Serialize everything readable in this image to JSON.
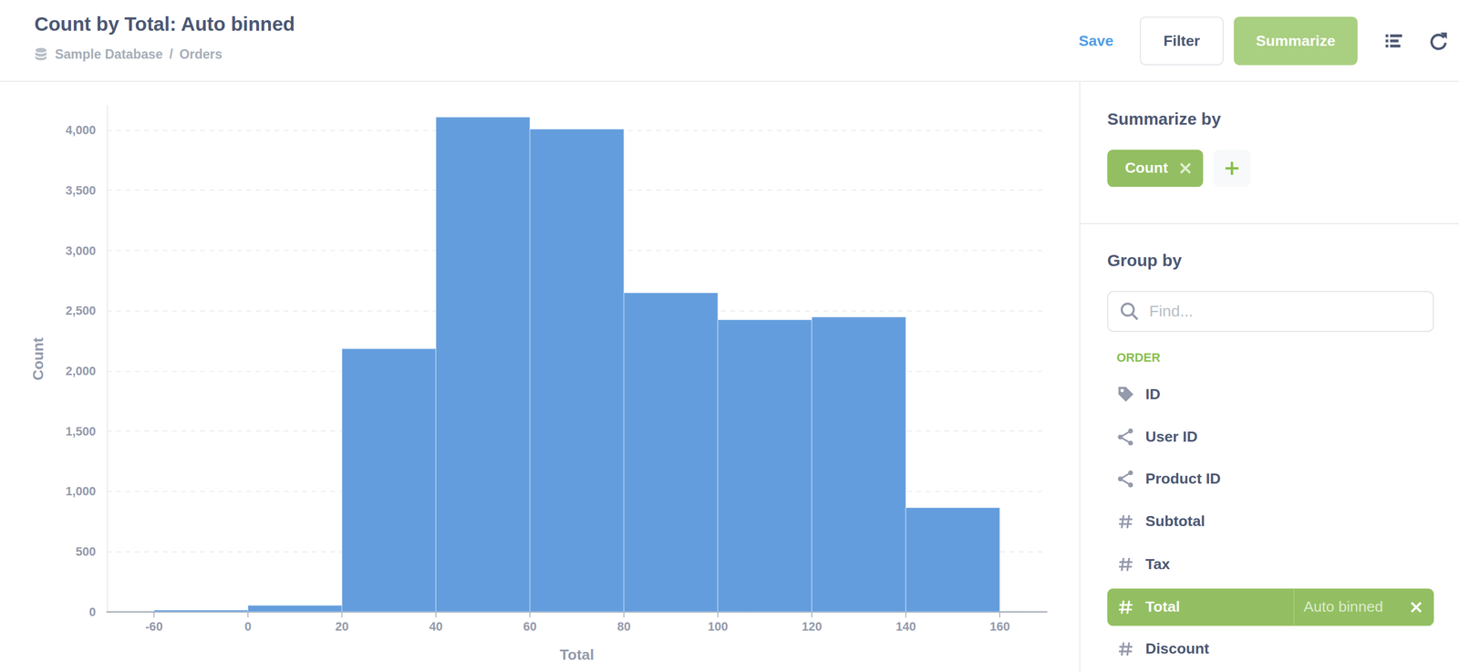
{
  "header": {
    "title": "Count by Total: Auto binned",
    "breadcrumb": [
      "Sample Database",
      "Orders"
    ],
    "breadcrumb_separator": "/",
    "buttons": [
      "Save",
      "Filter",
      "Summarize"
    ]
  },
  "sidebar": {
    "summarize_title": "Summarize by",
    "metrics": [
      "Count"
    ],
    "group_title": "Group by",
    "search_placeholder": "Find...",
    "section": "ORDER",
    "fields": [
      {
        "label": "ID",
        "kind": "pk"
      },
      {
        "label": "User ID",
        "kind": "fk"
      },
      {
        "label": "Product ID",
        "kind": "fk"
      },
      {
        "label": "Subtotal",
        "kind": "number"
      },
      {
        "label": "Tax",
        "kind": "number"
      },
      {
        "label": "Total",
        "kind": "number",
        "selected": true,
        "binning": "Auto binned"
      },
      {
        "label": "Discount",
        "kind": "number"
      }
    ]
  },
  "chart_data": {
    "type": "histogram",
    "xlabel": "Total",
    "ylabel": "Count",
    "bins": [
      -60,
      0,
      20,
      40,
      60,
      80,
      100,
      120,
      140,
      160
    ],
    "values": [
      15,
      54,
      2185,
      4108,
      4008,
      2649,
      2425,
      2448,
      865
    ],
    "color": "#649ddd",
    "xticks": [
      -60,
      0,
      20,
      40,
      60,
      80,
      100,
      120,
      140,
      160
    ],
    "ylim": [
      0,
      4200
    ],
    "yticks": [
      0,
      500,
      {
        "value": 1000,
        "label": "1,000"
      },
      {
        "value": 1500,
        "label": "1,500"
      },
      {
        "value": 2000,
        "label": "2,000"
      },
      {
        "value": 2500,
        "label": "2,500"
      },
      {
        "value": 3000,
        "label": "3,000"
      },
      {
        "value": 3500,
        "label": "3,500"
      },
      {
        "value": 4000,
        "label": "4,000"
      }
    ],
    "grid": true
  }
}
